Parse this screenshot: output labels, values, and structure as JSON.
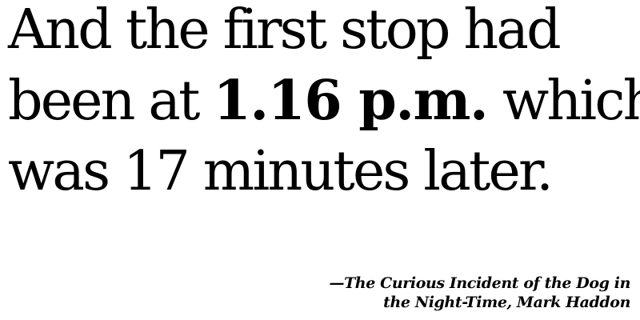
{
  "quote": {
    "line1": "And the first stop had",
    "line2_before": "been at ",
    "time": "1.16 p.m.",
    "line2_after": " which",
    "line3": "was 17 minutes later."
  },
  "attribution": {
    "line1": "—The Curious Incident of the Dog in",
    "line2": "the Night-Time, Mark Haddon"
  }
}
